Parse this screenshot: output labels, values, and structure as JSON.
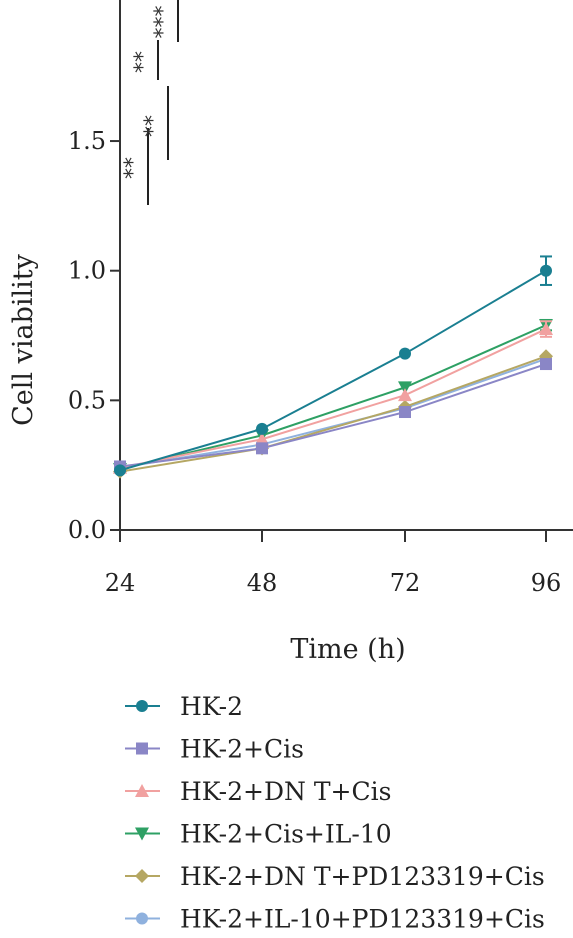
{
  "chart_data": {
    "type": "line",
    "x": [
      24,
      48,
      72,
      96
    ],
    "xlabel": "Time (h)",
    "ylabel": "Cell viability",
    "xticks": [
      "24",
      "48",
      "72",
      "96"
    ],
    "yticks": [
      "0.0",
      "0.5",
      "1.0",
      "1.5"
    ],
    "ylim": [
      0,
      1.5
    ],
    "legend_position": "bottom",
    "grid": false,
    "series": [
      {
        "name": "HK-2",
        "values": [
          0.23,
          0.39,
          0.68,
          1.0
        ],
        "error": [
          0.01,
          0.01,
          0.01,
          0.055
        ],
        "color": "#1a7f91",
        "marker": "circle"
      },
      {
        "name": "HK-2+Cis",
        "values": [
          0.245,
          0.315,
          0.455,
          0.64
        ],
        "error": [
          0.01,
          0.01,
          0.01,
          0.01
        ],
        "color": "#8a86c6",
        "marker": "square"
      },
      {
        "name": "HK-2+DN T+Cis",
        "values": [
          0.24,
          0.35,
          0.52,
          0.775
        ],
        "error": [
          0.01,
          0.01,
          0.01,
          0.03
        ],
        "color": "#f1a1a0",
        "marker": "triangle-up"
      },
      {
        "name": "HK-2+Cis+IL-10",
        "values": [
          0.235,
          0.365,
          0.55,
          0.79
        ],
        "error": [
          0.01,
          0.01,
          0.01,
          0.02
        ],
        "color": "#2ea064",
        "marker": "triangle-down"
      },
      {
        "name": "HK-2+DN T+PD123319+Cis",
        "values": [
          0.225,
          0.315,
          0.475,
          0.67
        ],
        "error": [
          0.01,
          0.01,
          0.01,
          0.01
        ],
        "color": "#b5a763",
        "marker": "diamond"
      },
      {
        "name": "HK-2+IL-10+PD123319+Cis",
        "values": [
          0.24,
          0.33,
          0.47,
          0.66
        ],
        "error": [
          0.01,
          0.01,
          0.01,
          0.01
        ],
        "color": "#8fb1de",
        "marker": "circle"
      }
    ],
    "annotations": [
      "**",
      "**",
      "**",
      "***"
    ]
  }
}
